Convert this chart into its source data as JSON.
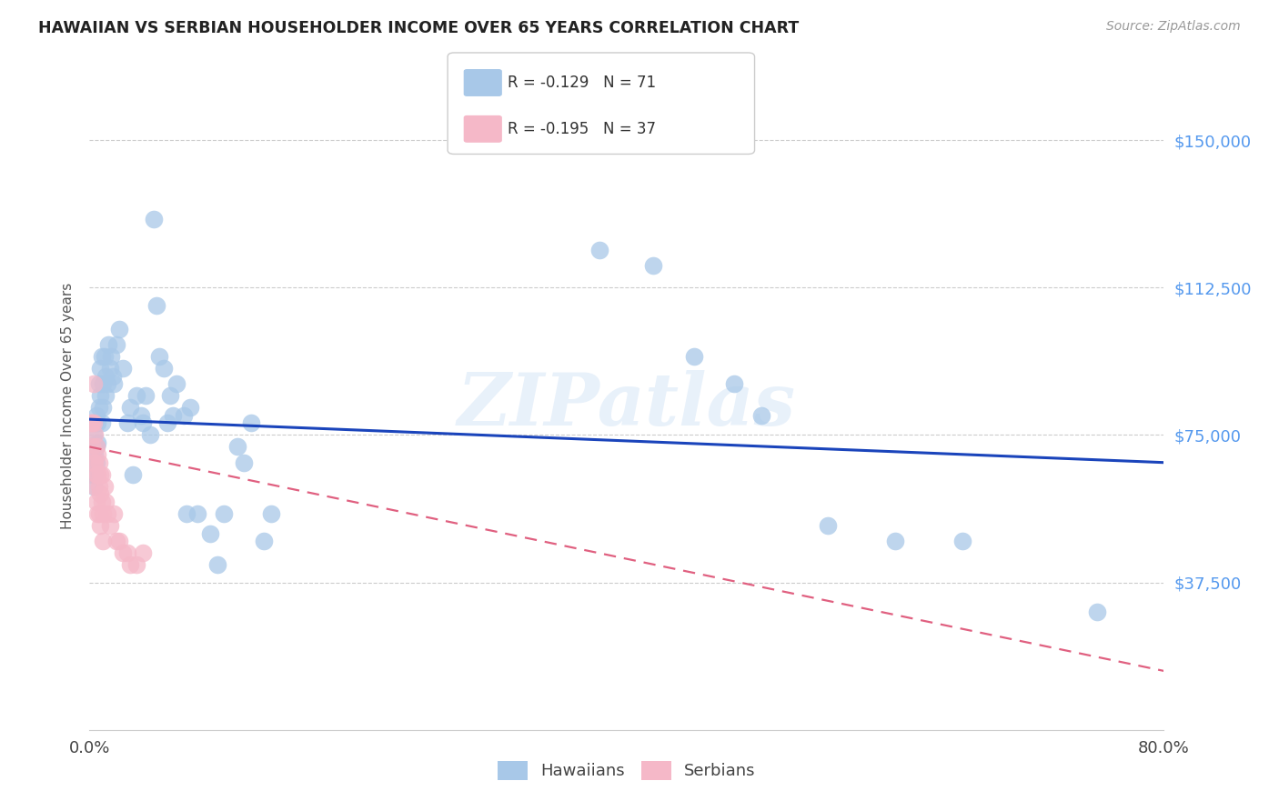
{
  "title": "HAWAIIAN VS SERBIAN HOUSEHOLDER INCOME OVER 65 YEARS CORRELATION CHART",
  "source": "Source: ZipAtlas.com",
  "ylabel": "Householder Income Over 65 years",
  "ytick_labels": [
    "$150,000",
    "$112,500",
    "$75,000",
    "$37,500"
  ],
  "ytick_values": [
    150000,
    112500,
    75000,
    37500
  ],
  "ylim": [
    0,
    165000
  ],
  "xlim": [
    0.0,
    0.8
  ],
  "hawaiian_color": "#a8c8e8",
  "serbian_color": "#f5b8c8",
  "trend_hawaiian_color": "#1a44bb",
  "trend_serbian_color": "#e06080",
  "watermark": "ZIPatlas",
  "legend_h_r": "-0.129",
  "legend_h_n": "71",
  "legend_s_r": "-0.195",
  "legend_s_n": "37",
  "hawaiian_scatter": [
    [
      0.001,
      68000
    ],
    [
      0.002,
      72000
    ],
    [
      0.002,
      65000
    ],
    [
      0.003,
      75000
    ],
    [
      0.003,
      68000
    ],
    [
      0.003,
      62000
    ],
    [
      0.004,
      78000
    ],
    [
      0.004,
      70000
    ],
    [
      0.004,
      65000
    ],
    [
      0.005,
      80000
    ],
    [
      0.005,
      72000
    ],
    [
      0.005,
      68000
    ],
    [
      0.006,
      78000
    ],
    [
      0.006,
      73000
    ],
    [
      0.007,
      88000
    ],
    [
      0.007,
      82000
    ],
    [
      0.008,
      92000
    ],
    [
      0.008,
      85000
    ],
    [
      0.009,
      95000
    ],
    [
      0.009,
      78000
    ],
    [
      0.01,
      88000
    ],
    [
      0.01,
      82000
    ],
    [
      0.011,
      95000
    ],
    [
      0.012,
      90000
    ],
    [
      0.012,
      85000
    ],
    [
      0.013,
      88000
    ],
    [
      0.014,
      98000
    ],
    [
      0.015,
      92000
    ],
    [
      0.016,
      95000
    ],
    [
      0.017,
      90000
    ],
    [
      0.018,
      88000
    ],
    [
      0.02,
      98000
    ],
    [
      0.022,
      102000
    ],
    [
      0.025,
      92000
    ],
    [
      0.028,
      78000
    ],
    [
      0.03,
      82000
    ],
    [
      0.032,
      65000
    ],
    [
      0.035,
      85000
    ],
    [
      0.038,
      80000
    ],
    [
      0.04,
      78000
    ],
    [
      0.042,
      85000
    ],
    [
      0.045,
      75000
    ],
    [
      0.048,
      130000
    ],
    [
      0.05,
      108000
    ],
    [
      0.052,
      95000
    ],
    [
      0.055,
      92000
    ],
    [
      0.058,
      78000
    ],
    [
      0.06,
      85000
    ],
    [
      0.062,
      80000
    ],
    [
      0.065,
      88000
    ],
    [
      0.07,
      80000
    ],
    [
      0.072,
      55000
    ],
    [
      0.075,
      82000
    ],
    [
      0.08,
      55000
    ],
    [
      0.09,
      50000
    ],
    [
      0.095,
      42000
    ],
    [
      0.1,
      55000
    ],
    [
      0.11,
      72000
    ],
    [
      0.115,
      68000
    ],
    [
      0.12,
      78000
    ],
    [
      0.13,
      48000
    ],
    [
      0.135,
      55000
    ],
    [
      0.38,
      122000
    ],
    [
      0.42,
      118000
    ],
    [
      0.45,
      95000
    ],
    [
      0.48,
      88000
    ],
    [
      0.5,
      80000
    ],
    [
      0.55,
      52000
    ],
    [
      0.6,
      48000
    ],
    [
      0.65,
      48000
    ],
    [
      0.75,
      30000
    ]
  ],
  "serbian_scatter": [
    [
      0.001,
      78000
    ],
    [
      0.002,
      78000
    ],
    [
      0.002,
      72000
    ],
    [
      0.003,
      88000
    ],
    [
      0.003,
      78000
    ],
    [
      0.003,
      68000
    ],
    [
      0.004,
      75000
    ],
    [
      0.004,
      68000
    ],
    [
      0.004,
      62000
    ],
    [
      0.005,
      72000
    ],
    [
      0.005,
      65000
    ],
    [
      0.005,
      58000
    ],
    [
      0.006,
      70000
    ],
    [
      0.006,
      65000
    ],
    [
      0.006,
      55000
    ],
    [
      0.007,
      68000
    ],
    [
      0.007,
      62000
    ],
    [
      0.007,
      55000
    ],
    [
      0.008,
      65000
    ],
    [
      0.008,
      60000
    ],
    [
      0.008,
      52000
    ],
    [
      0.009,
      65000
    ],
    [
      0.009,
      58000
    ],
    [
      0.01,
      55000
    ],
    [
      0.01,
      48000
    ],
    [
      0.011,
      62000
    ],
    [
      0.012,
      58000
    ],
    [
      0.013,
      55000
    ],
    [
      0.015,
      52000
    ],
    [
      0.018,
      55000
    ],
    [
      0.02,
      48000
    ],
    [
      0.022,
      48000
    ],
    [
      0.025,
      45000
    ],
    [
      0.028,
      45000
    ],
    [
      0.03,
      42000
    ],
    [
      0.035,
      42000
    ],
    [
      0.04,
      45000
    ]
  ]
}
